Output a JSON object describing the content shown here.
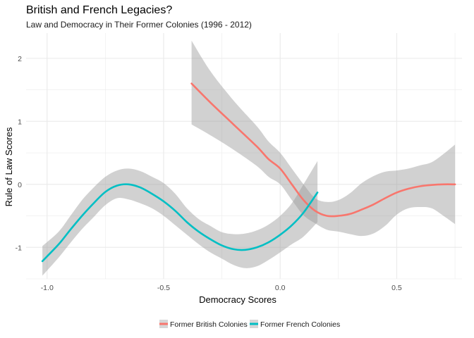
{
  "chart_data": {
    "type": "line",
    "title": "British and French Legacies?",
    "subtitle": "Law and Democracy in Their Former Colonies (1996 - 2012)",
    "xlabel": "Democracy Scores",
    "ylabel": "Rule of Law Scores",
    "xlim": [
      -1.09,
      0.78
    ],
    "ylim": [
      -1.5,
      2.4
    ],
    "x_ticks": [
      -1.0,
      -0.5,
      0.0,
      0.5
    ],
    "x_tick_labels": [
      "-1.0",
      "-0.5",
      "0.0",
      "0.5"
    ],
    "y_ticks": [
      -1,
      0,
      1,
      2
    ],
    "y_tick_labels": [
      "-1",
      "0",
      "1",
      "2"
    ],
    "grid": true,
    "legend_position": "bottom",
    "colors": {
      "british": "#F8766D",
      "french": "#00BFC4",
      "ribbon": "#999999",
      "grid": "#ebebeb"
    },
    "series": [
      {
        "name": "Former British Colonies",
        "color": "#F8766D",
        "x": [
          -0.38,
          -0.3,
          -0.2,
          -0.1,
          -0.05,
          0.0,
          0.05,
          0.1,
          0.15,
          0.2,
          0.25,
          0.3,
          0.35,
          0.4,
          0.45,
          0.5,
          0.55,
          0.6,
          0.65,
          0.7,
          0.75
        ],
        "y": [
          1.6,
          1.3,
          0.95,
          0.6,
          0.4,
          0.25,
          0.0,
          -0.25,
          -0.42,
          -0.5,
          -0.5,
          -0.47,
          -0.4,
          -0.32,
          -0.22,
          -0.13,
          -0.07,
          -0.03,
          -0.01,
          0.0,
          0.0
        ],
        "upper": [
          2.28,
          1.8,
          1.33,
          0.92,
          0.68,
          0.5,
          0.25,
          0.0,
          -0.22,
          -0.28,
          -0.25,
          -0.14,
          0.02,
          0.13,
          0.2,
          0.22,
          0.25,
          0.3,
          0.35,
          0.48,
          0.63
        ],
        "lower": [
          0.95,
          0.78,
          0.55,
          0.29,
          0.12,
          0.0,
          -0.25,
          -0.49,
          -0.62,
          -0.72,
          -0.75,
          -0.79,
          -0.82,
          -0.78,
          -0.66,
          -0.48,
          -0.38,
          -0.36,
          -0.38,
          -0.5,
          -0.63
        ]
      },
      {
        "name": "Former French Colonies",
        "color": "#00BFC4",
        "x": [
          -1.02,
          -0.95,
          -0.9,
          -0.85,
          -0.8,
          -0.75,
          -0.7,
          -0.65,
          -0.6,
          -0.55,
          -0.5,
          -0.45,
          -0.4,
          -0.35,
          -0.3,
          -0.25,
          -0.2,
          -0.15,
          -0.1,
          -0.05,
          0.0,
          0.05,
          0.1,
          0.16
        ],
        "y": [
          -1.22,
          -0.95,
          -0.72,
          -0.5,
          -0.3,
          -0.12,
          -0.02,
          0.0,
          -0.05,
          -0.15,
          -0.27,
          -0.42,
          -0.6,
          -0.75,
          -0.87,
          -0.97,
          -1.03,
          -1.04,
          -1.0,
          -0.92,
          -0.8,
          -0.65,
          -0.45,
          -0.13
        ],
        "upper": [
          -0.98,
          -0.75,
          -0.5,
          -0.25,
          -0.05,
          0.12,
          0.22,
          0.25,
          0.21,
          0.12,
          0.02,
          -0.15,
          -0.38,
          -0.55,
          -0.66,
          -0.76,
          -0.79,
          -0.78,
          -0.73,
          -0.64,
          -0.5,
          -0.3,
          0.0,
          0.37
        ],
        "lower": [
          -1.45,
          -1.16,
          -0.93,
          -0.71,
          -0.52,
          -0.33,
          -0.22,
          -0.24,
          -0.3,
          -0.38,
          -0.5,
          -0.65,
          -0.8,
          -0.95,
          -1.08,
          -1.18,
          -1.28,
          -1.33,
          -1.3,
          -1.2,
          -1.08,
          -0.95,
          -0.83,
          -0.6
        ]
      }
    ]
  }
}
